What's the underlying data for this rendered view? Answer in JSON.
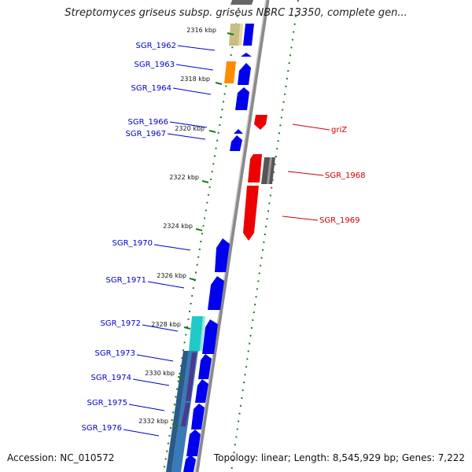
{
  "title": "Streptomyces griseus subsp. griseus NBRC 13350, complete gen...",
  "footer": {
    "accession": "Accession: NC_010572",
    "topology": "Topology: linear; Length: 8,545,929 bp; Genes: 7,222"
  },
  "colors": {
    "backbone": "#8a8a8a",
    "scale_dots": "#1f7a1f",
    "gene_default": "#0000ee",
    "gene_highlight": "#ee0000",
    "label_blue": "#0000cc",
    "label_red": "#cc0000"
  },
  "ruler": [
    {
      "label": "2316 kbp"
    },
    {
      "label": "2318 kbp"
    },
    {
      "label": "2320 kbp"
    },
    {
      "label": "2322 kbp"
    },
    {
      "label": "2324 kbp"
    },
    {
      "label": "2326 kbp"
    },
    {
      "label": "2328 kbp"
    },
    {
      "label": "2330 kbp"
    },
    {
      "label": "2332 kbp"
    }
  ],
  "gene_labels": [
    {
      "label": "SGR_1962",
      "color": "#0000cc"
    },
    {
      "label": "SGR_1963",
      "color": "#0000cc"
    },
    {
      "label": "SGR_1964",
      "color": "#0000cc"
    },
    {
      "label": "SGR_1966",
      "color": "#0000cc"
    },
    {
      "label": "SGR_1967",
      "color": "#0000cc"
    },
    {
      "label": "griZ",
      "color": "#cc0000"
    },
    {
      "label": "SGR_1968",
      "color": "#cc0000"
    },
    {
      "label": "SGR_1969",
      "color": "#cc0000"
    },
    {
      "label": "SGR_1970",
      "color": "#0000cc"
    },
    {
      "label": "SGR_1971",
      "color": "#0000cc"
    },
    {
      "label": "SGR_1972",
      "color": "#0000cc"
    },
    {
      "label": "SGR_1973",
      "color": "#0000cc"
    },
    {
      "label": "SGR_1974",
      "color": "#0000cc"
    },
    {
      "label": "SGR_1975",
      "color": "#0000cc"
    },
    {
      "label": "SGR_1976",
      "color": "#0000cc"
    }
  ]
}
